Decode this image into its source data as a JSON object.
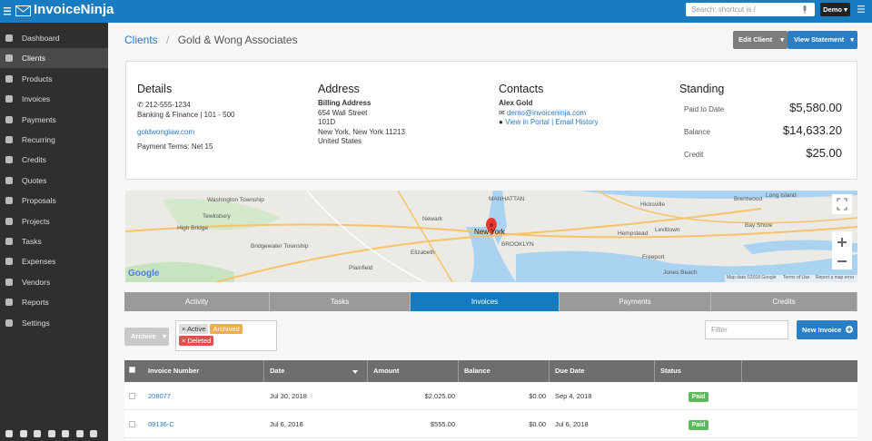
{
  "header": {
    "logo": "InvoiceNinja",
    "search_placeholder": "Search: shortcut is /",
    "user_menu": "Demo"
  },
  "sidebar": {
    "items": [
      "Dashboard",
      "Clients",
      "Products",
      "Invoices",
      "Payments",
      "Recurring",
      "Credits",
      "Quotes",
      "Proposals",
      "Projects",
      "Tasks",
      "Expenses",
      "Vendors",
      "Reports",
      "Settings"
    ]
  },
  "breadcrumb": {
    "parent": "Clients",
    "current": "Gold & Wong Associates"
  },
  "actions": [
    "Edit Client",
    "View Statement"
  ],
  "details": {
    "heading": "Details",
    "phone": "212-555-1234",
    "industry": "Banking & Finance | 101 - 500",
    "website": "goldwonglaw.com",
    "payment_terms": "Payment Terms: Net 15"
  },
  "address": {
    "heading": "Address",
    "label": "Billing Address",
    "lines": [
      "654 Wall Street",
      "101D",
      "New York, New York 11213",
      "United States"
    ]
  },
  "contacts": {
    "heading": "Contacts",
    "name": "Alex Gold",
    "email": "demo@invoiceninja.com",
    "portal": "View in Portal",
    "history": "Email History"
  },
  "standing": {
    "heading": "Standing",
    "rows": [
      [
        "Paid to Date",
        "$5,580.00"
      ],
      [
        "Balance",
        "$14,633.20"
      ],
      [
        "Credit",
        "$25.00"
      ]
    ]
  },
  "map": {
    "labels": [
      "Washington Township",
      "Tewksbury",
      "High Bridge",
      "Bridgewater Township",
      "Plainfield",
      "Newark",
      "Elizabeth",
      "New York",
      "MANHATTAN",
      "BROOKLYN",
      "Hicksville",
      "Hempstead",
      "Levittown",
      "Freeport",
      "Jones Beach",
      "Brentwood",
      "Bay Shore",
      "Long Island"
    ],
    "brand": "Google",
    "footer": [
      "Map data ©2018 Google",
      "Terms of Use",
      "Report a map error"
    ]
  },
  "tabs": [
    "Activity",
    "Tasks",
    "Invoices",
    "Payments",
    "Credits"
  ],
  "filters": {
    "archive": "Archive",
    "tags": [
      "× Active",
      "Archived",
      "× Deleted"
    ],
    "search_placeholder": "Filter",
    "new_button": "New Invoice"
  },
  "table": {
    "columns": [
      "Invoice Number",
      "Date",
      "Amount",
      "Balance",
      "Due Date",
      "Status"
    ],
    "rows": [
      [
        "208077",
        "Jul 30, 2018",
        "$2,025.00",
        "$0.00",
        "Sep 4, 2018",
        "Paid"
      ],
      [
        "09136-C",
        "Jul 6, 2018",
        "$555.00",
        "$0.00",
        "Jul 6, 2018",
        "Paid"
      ]
    ]
  }
}
